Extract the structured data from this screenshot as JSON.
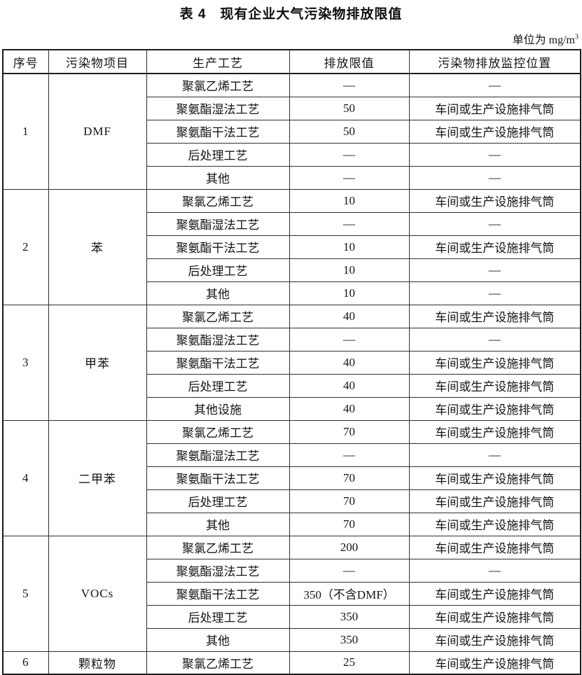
{
  "title": "表 4　现有企业大气污染物排放限值",
  "unit": {
    "label": "单位为 mg/m",
    "superscript": "3"
  },
  "table": {
    "headers": [
      "序号",
      "污染物项目",
      "生产工艺",
      "排放限值",
      "污染物排放监控位置"
    ],
    "groups": [
      {
        "no": "1",
        "pollutant": "DMF",
        "rows": [
          [
            "聚氯乙烯工艺",
            "—",
            "—"
          ],
          [
            "聚氨酯湿法工艺",
            "50",
            "车间或生产设施排气筒"
          ],
          [
            "聚氨酯干法工艺",
            "50",
            "车间或生产设施排气筒"
          ],
          [
            "后处理工艺",
            "—",
            "—"
          ],
          [
            "其他",
            "—",
            "—"
          ]
        ]
      },
      {
        "no": "2",
        "pollutant": "苯",
        "rows": [
          [
            "聚氯乙烯工艺",
            "10",
            "车间或生产设施排气筒"
          ],
          [
            "聚氨酯湿法工艺",
            "—",
            "—"
          ],
          [
            "聚氨酯干法工艺",
            "10",
            "车间或生产设施排气筒"
          ],
          [
            "后处理工艺",
            "10",
            "—"
          ],
          [
            "其他",
            "10",
            "—"
          ]
        ]
      },
      {
        "no": "3",
        "pollutant": "甲苯",
        "rows": [
          [
            "聚氯乙烯工艺",
            "40",
            "车间或生产设施排气筒"
          ],
          [
            "聚氨酯湿法工艺",
            "—",
            "—"
          ],
          [
            "聚氨酯干法工艺",
            "40",
            "车间或生产设施排气筒"
          ],
          [
            "后处理工艺",
            "40",
            "车间或生产设施排气筒"
          ],
          [
            "其他设施",
            "40",
            "车间或生产设施排气筒"
          ]
        ]
      },
      {
        "no": "4",
        "pollutant": "二甲苯",
        "rows": [
          [
            "聚氯乙烯工艺",
            "70",
            "车间或生产设施排气筒"
          ],
          [
            "聚氨酯湿法工艺",
            "—",
            "—"
          ],
          [
            "聚氨酯干法工艺",
            "70",
            "车间或生产设施排气筒"
          ],
          [
            "后处理工艺",
            "70",
            "车间或生产设施排气筒"
          ],
          [
            "其他",
            "70",
            "车间或生产设施排气筒"
          ]
        ]
      },
      {
        "no": "5",
        "pollutant": "VOCs",
        "rows": [
          [
            "聚氯乙烯工艺",
            "200",
            "车间或生产设施排气筒"
          ],
          [
            "聚氨酯湿法工艺",
            "—",
            "—"
          ],
          [
            "聚氨酯干法工艺",
            "350（不含DMF）",
            "车间或生产设施排气筒"
          ],
          [
            "后处理工艺",
            "350",
            "车间或生产设施排气筒"
          ],
          [
            "其他",
            "350",
            "车间或生产设施排气筒"
          ]
        ]
      },
      {
        "no": "6",
        "pollutant": "颗粒物",
        "rows": [
          [
            "聚氯乙烯工艺",
            "25",
            "车间或生产设施排气筒"
          ]
        ]
      }
    ]
  }
}
